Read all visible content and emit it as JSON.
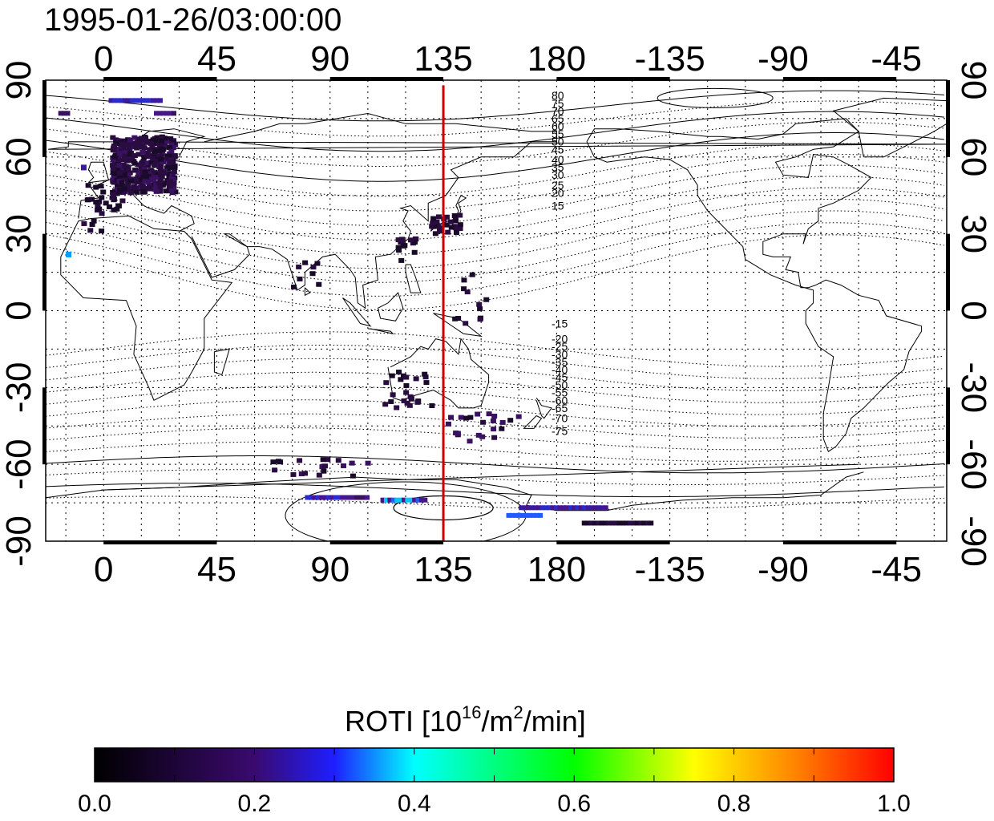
{
  "timestamp": "1995-01-26/03:00:00",
  "map": {
    "lon_ticks_top": [
      "0",
      "45",
      "90",
      "135",
      "180",
      "-135",
      "-90",
      "-45"
    ],
    "lon_ticks_bottom": [
      "0",
      "45",
      "90",
      "135",
      "180",
      "-135",
      "-90",
      "-45"
    ],
    "lat_ticks_left": [
      "90",
      "60",
      "30",
      "0",
      "-30",
      "-60",
      "-90"
    ],
    "lat_ticks_right": [
      "90",
      "60",
      "30",
      "0",
      "-30",
      "-60",
      "-90"
    ],
    "lon_range": [
      -23,
      335
    ],
    "lat_range": [
      -90,
      90
    ],
    "meridian_line_lon": 135,
    "meridian_line_color": "#cc0000",
    "contour_labels_north": [
      "80",
      "75",
      "70",
      "65",
      "60",
      "55",
      "50",
      "45",
      "40",
      "35",
      "30",
      "25",
      "20",
      "15"
    ],
    "contour_labels_south": [
      "-15",
      "-20",
      "-25",
      "-30",
      "-35",
      "-40",
      "-45",
      "-50",
      "-55",
      "-60",
      "-65",
      "-70",
      "-75"
    ]
  },
  "colorbar": {
    "title": "ROTI  [10",
    "title_sup1": "16",
    "title_mid": "/m",
    "title_sup2": "2",
    "title_end": "/min]",
    "ticks": [
      "0.0",
      "0.2",
      "0.4",
      "0.6",
      "0.8",
      "1.0"
    ],
    "stops": [
      "#000000",
      "#3a0a6e",
      "#1e1eff",
      "#00ffff",
      "#00ff00",
      "#ffff00",
      "#ff8000",
      "#ff0000"
    ]
  }
}
